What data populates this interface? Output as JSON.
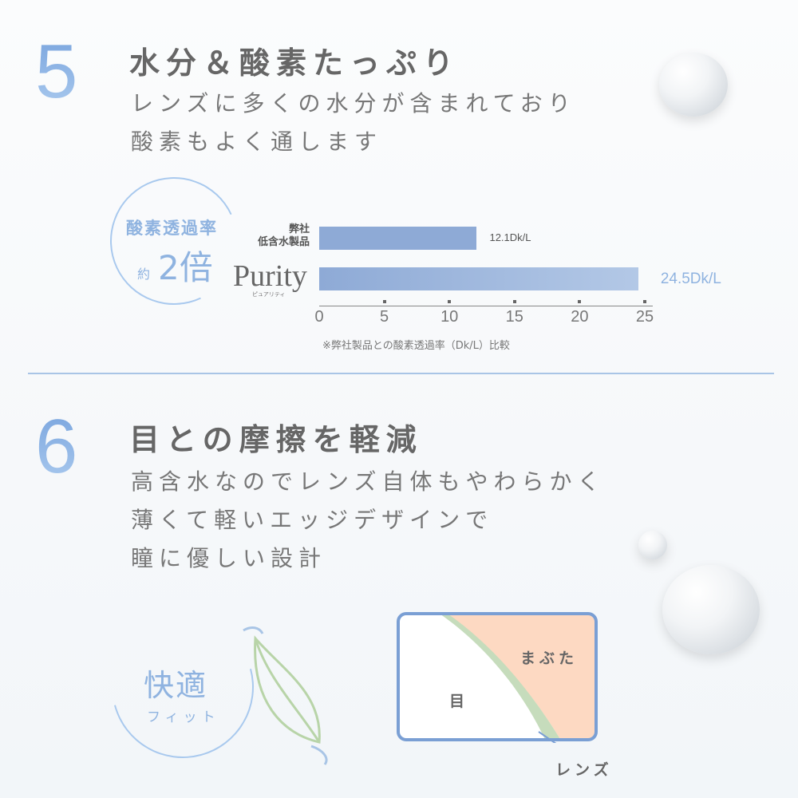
{
  "section5": {
    "number": "5",
    "title": "水分＆酸素たっぷり",
    "lines": [
      "レンズに多くの水分が含まれており",
      "酸素もよく通します"
    ],
    "badge": {
      "top": "酸素透過率",
      "prefix": "約",
      "value": "2倍"
    },
    "note": "※弊社製品との酸素透過率（Dk/L）比較"
  },
  "chart_data": {
    "type": "bar",
    "orientation": "horizontal",
    "categories": [
      "弊社\n低含水製品",
      "Purity"
    ],
    "category_lines": [
      [
        "弊社",
        "低含水製品"
      ],
      [
        "Purity"
      ]
    ],
    "brand_sub": "ピュアリティ",
    "values": [
      12.1,
      24.5
    ],
    "data_labels": [
      "12.1Dk/L",
      "24.5Dk/L"
    ],
    "xlim": [
      0,
      25
    ],
    "xticks": [
      "0",
      "5",
      "10",
      "15",
      "20",
      "25"
    ],
    "bar_color": "#8eaad6"
  },
  "section6": {
    "number": "6",
    "title": "目との摩擦を軽減",
    "lines": [
      "高含水なのでレンズ自体もやわらかく",
      "薄くて軽いエッジデザインで",
      "瞳に優しい設計"
    ],
    "badge": {
      "main": "快適",
      "sub": "フィット"
    },
    "diagram": {
      "eye": "目",
      "eyelid": "まぶた",
      "lens": "レンズ",
      "eyelid_color": "#fdd9c2",
      "lens_color": "#c6dcbc"
    }
  }
}
